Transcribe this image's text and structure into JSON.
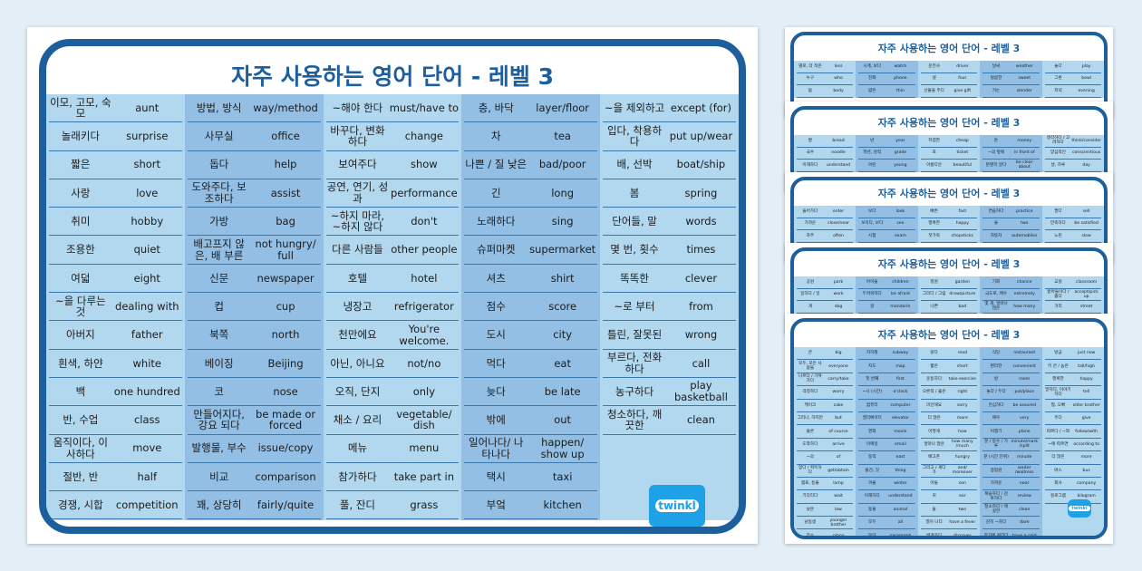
{
  "colors": {
    "frame": "#1d5e9c",
    "cell_light": "#b2d8ef",
    "cell_dark": "#93bfe5",
    "logo": "#1ea1e6",
    "background": "#e3eef7"
  },
  "main": {
    "title": "자주 사용하는 영어 단어 - 레벨 3",
    "logo": "twinkl",
    "columns": [
      {
        "rows": [
          {
            "ko": "이모, 고모, 숙모",
            "en": "aunt"
          },
          {
            "ko": "놀래키다",
            "en": "surprise"
          },
          {
            "ko": "짧은",
            "en": "short"
          },
          {
            "ko": "사랑",
            "en": "love"
          },
          {
            "ko": "취미",
            "en": "hobby"
          },
          {
            "ko": "조용한",
            "en": "quiet"
          },
          {
            "ko": "여덟",
            "en": "eight"
          },
          {
            "ko": "~을 다루는 것",
            "en": "dealing with"
          },
          {
            "ko": "아버지",
            "en": "father"
          },
          {
            "ko": "흰색, 하얀",
            "en": "white"
          },
          {
            "ko": "백",
            "en": "one hundred"
          },
          {
            "ko": "반, 수업",
            "en": "class"
          },
          {
            "ko": "움직이다, 이사하다",
            "en": "move"
          },
          {
            "ko": "절반, 반",
            "en": "half"
          },
          {
            "ko": "경쟁, 시합",
            "en": "competition"
          }
        ]
      },
      {
        "rows": [
          {
            "ko": "방법, 방식",
            "en": "way/method"
          },
          {
            "ko": "사무실",
            "en": "office"
          },
          {
            "ko": "돕다",
            "en": "help"
          },
          {
            "ko": "도와주다, 보조하다",
            "en": "assist"
          },
          {
            "ko": "가방",
            "en": "bag"
          },
          {
            "ko": "배고프지 않은, 배 부른",
            "en": "not hungry/ full"
          },
          {
            "ko": "신문",
            "en": "newspaper"
          },
          {
            "ko": "컵",
            "en": "cup"
          },
          {
            "ko": "북쪽",
            "en": "north"
          },
          {
            "ko": "베이징",
            "en": "Beijing"
          },
          {
            "ko": "코",
            "en": "nose"
          },
          {
            "ko": "만들어지다, 강요 되다",
            "en": "be made or forced"
          },
          {
            "ko": "발행물, 부수",
            "en": "issue/copy"
          },
          {
            "ko": "비교",
            "en": "comparison"
          },
          {
            "ko": "꽤, 상당히",
            "en": "fairly/quite"
          }
        ]
      },
      {
        "rows": [
          {
            "ko": "~해야 한다",
            "en": "must/have to"
          },
          {
            "ko": "바꾸다, 변화하다",
            "en": "change"
          },
          {
            "ko": "보여주다",
            "en": "show"
          },
          {
            "ko": "공연, 연기, 성과",
            "en": "performance"
          },
          {
            "ko": "~하지 마라, ~하지 않다",
            "en": "don't"
          },
          {
            "ko": "다른 사람들",
            "en": "other people"
          },
          {
            "ko": "호텔",
            "en": "hotel"
          },
          {
            "ko": "냉장고",
            "en": "refrigerator"
          },
          {
            "ko": "천만에요",
            "en": "You're welcome."
          },
          {
            "ko": "아닌, 아니요",
            "en": "not/no"
          },
          {
            "ko": "오직, 단지",
            "en": "only"
          },
          {
            "ko": "채소 / 요리",
            "en": "vegetable/ dish"
          },
          {
            "ko": "메뉴",
            "en": "menu"
          },
          {
            "ko": "참가하다",
            "en": "take part in"
          },
          {
            "ko": "풀, 잔디",
            "en": "grass"
          }
        ]
      },
      {
        "rows": [
          {
            "ko": "층, 바닥",
            "en": "layer/floor"
          },
          {
            "ko": "차",
            "en": "tea"
          },
          {
            "ko": "나쁜 / 질 낮은",
            "en": "bad/poor"
          },
          {
            "ko": "긴",
            "en": "long"
          },
          {
            "ko": "노래하다",
            "en": "sing"
          },
          {
            "ko": "슈퍼마켓",
            "en": "supermarket"
          },
          {
            "ko": "셔츠",
            "en": "shirt"
          },
          {
            "ko": "점수",
            "en": "score"
          },
          {
            "ko": "도시",
            "en": "city"
          },
          {
            "ko": "먹다",
            "en": "eat"
          },
          {
            "ko": "늦다",
            "en": "be late"
          },
          {
            "ko": "밖에",
            "en": "out"
          },
          {
            "ko": "일어나다/ 나타나다",
            "en": "happen/ show up"
          },
          {
            "ko": "택시",
            "en": "taxi"
          },
          {
            "ko": "부엌",
            "en": "kitchen"
          }
        ]
      },
      {
        "rows": [
          {
            "ko": "~을 제외하고",
            "en": "except (for)"
          },
          {
            "ko": "입다, 착용하다",
            "en": "put up/wear"
          },
          {
            "ko": "배, 선박",
            "en": "boat/ship"
          },
          {
            "ko": "봄",
            "en": "spring"
          },
          {
            "ko": "단어들, 말",
            "en": "words"
          },
          {
            "ko": "몇 번, 횟수",
            "en": "times"
          },
          {
            "ko": "똑똑한",
            "en": "clever"
          },
          {
            "ko": "~로 부터",
            "en": "from"
          },
          {
            "ko": "틀린, 잘못된",
            "en": "wrong"
          },
          {
            "ko": "부르다, 전화하다",
            "en": "call"
          },
          {
            "ko": "농구하다",
            "en": "play basketball"
          },
          {
            "ko": "청소하다, 깨끗한",
            "en": "clean"
          }
        ]
      }
    ]
  },
  "previews": [
    {
      "title": "자주 사용하는 영어 단어 - 레벨 3",
      "columns": [
        {
          "rows": [
            {
              "ko": "별로, 더 적은",
              "en": "less"
            },
            {
              "ko": "누구",
              "en": "who"
            },
            {
              "ko": "몸",
              "en": "body"
            }
          ]
        },
        {
          "rows": [
            {
              "ko": "시계, 보다",
              "en": "watch"
            },
            {
              "ko": "전화",
              "en": "phone"
            },
            {
              "ko": "얇은",
              "en": "thin"
            }
          ]
        },
        {
          "rows": [
            {
              "ko": "운전사",
              "en": "driver"
            },
            {
              "ko": "넷",
              "en": "four"
            },
            {
              "ko": "선물을 주다",
              "en": "give gift"
            }
          ]
        },
        {
          "rows": [
            {
              "ko": "날씨",
              "en": "weather"
            },
            {
              "ko": "달콤한",
              "en": "sweet"
            },
            {
              "ko": "가는",
              "en": "slender"
            }
          ]
        },
        {
          "rows": [
            {
              "ko": "놀다",
              "en": "play"
            },
            {
              "ko": "그릇",
              "en": "bowl"
            },
            {
              "ko": "저녁",
              "en": "evening"
            }
          ]
        }
      ]
    },
    {
      "title": "자주 사용하는 영어 단어 - 레벨 3",
      "columns": [
        {
          "rows": [
            {
              "ko": "빵",
              "en": "bread"
            },
            {
              "ko": "국수",
              "en": "noodle"
            },
            {
              "ko": "이해하다",
              "en": "understand"
            }
          ]
        },
        {
          "rows": [
            {
              "ko": "년",
              "en": "year"
            },
            {
              "ko": "학년, 성적",
              "en": "grade"
            },
            {
              "ko": "어린",
              "en": "young"
            }
          ]
        },
        {
          "rows": [
            {
              "ko": "저렴한",
              "en": "cheap"
            },
            {
              "ko": "표",
              "en": "ticket"
            },
            {
              "ko": "아름다운",
              "en": "beautiful"
            }
          ]
        },
        {
          "rows": [
            {
              "ko": "돈",
              "en": "money"
            },
            {
              "ko": "~의 앞에",
              "en": "in front of"
            },
            {
              "ko": "분명히 알다",
              "en": "be clear about"
            }
          ]
        },
        {
          "rows": [
            {
              "ko": "생각하다 / 고려하다",
              "en": "think/consider"
            },
            {
              "ko": "양심적인",
              "en": "conscientious"
            },
            {
              "ko": "날, 하루",
              "en": "day"
            }
          ]
        }
      ]
    },
    {
      "title": "자주 사용하는 영어 단어 - 레벨 3",
      "columns": [
        {
          "rows": [
            {
              "ko": "들어가다",
              "en": "enter"
            },
            {
              "ko": "가까운",
              "en": "close/near"
            },
            {
              "ko": "자주",
              "en": "often"
            }
          ]
        },
        {
          "rows": [
            {
              "ko": "보다",
              "en": "look"
            },
            {
              "ko": "보이다, 보다",
              "en": "see"
            },
            {
              "ko": "시험",
              "en": "exam"
            }
          ]
        },
        {
          "rows": [
            {
              "ko": "빠른",
              "en": "fast"
            },
            {
              "ko": "행복한",
              "en": "happy"
            },
            {
              "ko": "젓가락",
              "en": "chopsticks"
            }
          ]
        },
        {
          "rows": [
            {
              "ko": "연습하다",
              "en": "practice"
            },
            {
              "ko": "둘",
              "en": "two"
            },
            {
              "ko": "자동차",
              "en": "automobiles"
            }
          ]
        },
        {
          "rows": [
            {
              "ko": "팔다",
              "en": "sell"
            },
            {
              "ko": "만족하다",
              "en": "be satisfied"
            },
            {
              "ko": "느린",
              "en": "slow"
            }
          ]
        }
      ]
    },
    {
      "title": "자주 사용하는 영어 단어 - 레벨 3",
      "columns": [
        {
          "rows": [
            {
              "ko": "공원",
              "en": "park"
            },
            {
              "ko": "일하다 / 일",
              "en": "work"
            },
            {
              "ko": "개",
              "en": "dog"
            }
          ]
        },
        {
          "rows": [
            {
              "ko": "아이들",
              "en": "children"
            },
            {
              "ko": "두려워하다",
              "en": "be afraid"
            },
            {
              "ko": "귤",
              "en": "mandarin"
            }
          ]
        },
        {
          "rows": [
            {
              "ko": "정원",
              "en": "garden"
            },
            {
              "ko": "그리다 / 그림",
              "en": "draw/picture"
            },
            {
              "ko": "나쁜",
              "en": "bad"
            }
          ]
        },
        {
          "rows": [
            {
              "ko": "기회",
              "en": "chance"
            },
            {
              "ko": "극도로, 매우",
              "en": "extremely"
            },
            {
              "ko": "몇 개, 얼마나 많은",
              "en": "how many"
            }
          ]
        },
        {
          "rows": [
            {
              "ko": "교실",
              "en": "classroom"
            },
            {
              "ko": "받아들이다 / 줍다",
              "en": "accept/pick up"
            },
            {
              "ko": "거리",
              "en": "street"
            }
          ]
        }
      ]
    },
    {
      "title": "자주 사용하는 영어 단어 - 레벨 3",
      "logo": "twinkl",
      "columns": [
        {
          "rows": [
            {
              "ko": "큰",
              "en": "big"
            },
            {
              "ko": "모두, 모든 사람들",
              "en": "everyone"
            },
            {
              "ko": "나르다 / 가져가다",
              "en": "carry/take"
            },
            {
              "ko": "걱정하다",
              "en": "worry"
            },
            {
              "ko": "케이크",
              "en": "cake"
            },
            {
              "ko": "그러나, 하지만",
              "en": "but"
            },
            {
              "ko": "물론",
              "en": "of course"
            },
            {
              "ko": "도착하다",
              "en": "arrive"
            },
            {
              "ko": "~의",
              "en": "of"
            },
            {
              "ko": "얻다 / 획득하다",
              "en": "get/obtain"
            },
            {
              "ko": "램프, 등불",
              "en": "lamp"
            },
            {
              "ko": "기다리다",
              "en": "wait"
            },
            {
              "ko": "낮은",
              "en": "low"
            },
            {
              "ko": "남동생",
              "en": "younger brother"
            },
            {
              "ko": "장소",
              "en": "place"
            }
          ]
        },
        {
          "rows": [
            {
              "ko": "지하철",
              "en": "subway"
            },
            {
              "ko": "지도",
              "en": "map"
            },
            {
              "ko": "첫 번째",
              "en": "first"
            },
            {
              "ko": "~시 (시간)",
              "en": "o'clock"
            },
            {
              "ko": "컴퓨터",
              "en": "computer"
            },
            {
              "ko": "엘리베이터",
              "en": "elevator"
            },
            {
              "ko": "영화",
              "en": "movie"
            },
            {
              "ko": "이메일",
              "en": "email"
            },
            {
              "ko": "동쪽",
              "en": "east"
            },
            {
              "ko": "물건, 것",
              "en": "thing"
            },
            {
              "ko": "겨울",
              "en": "winter"
            },
            {
              "ko": "이해하다",
              "en": "understand"
            },
            {
              "ko": "동물",
              "en": "animal"
            },
            {
              "ko": "모두",
              "en": "all"
            },
            {
              "ko": "문단",
              "en": "paragraph"
            }
          ]
        },
        {
          "rows": [
            {
              "ko": "읽다",
              "en": "read"
            },
            {
              "ko": "짧은",
              "en": "short"
            },
            {
              "ko": "운동하다",
              "en": "take exercise"
            },
            {
              "ko": "오른쪽 / 옳은",
              "en": "right"
            },
            {
              "ko": "미안해요",
              "en": "sorry"
            },
            {
              "ko": "더 많은",
              "en": "more"
            },
            {
              "ko": "어떻게",
              "en": "how"
            },
            {
              "ko": "얼마나 많은",
              "en": "how many /much"
            },
            {
              "ko": "배고픈",
              "en": "hungry"
            },
            {
              "ko": "그리고 / 게다가",
              "en": "and/ moreover"
            },
            {
              "ko": "아들",
              "en": "son"
            },
            {
              "ko": "귀",
              "en": "ear"
            },
            {
              "ko": "둘",
              "en": "two"
            },
            {
              "ko": "열이 나다",
              "en": "have a fever"
            },
            {
              "ko": "발견하다",
              "en": "discover"
            }
          ]
        },
        {
          "rows": [
            {
              "ko": "식당",
              "en": "restaurant"
            },
            {
              "ko": "편리한",
              "en": "convenient"
            },
            {
              "ko": "방",
              "en": "room"
            },
            {
              "ko": "놓다 / 두다",
              "en": "put/place"
            },
            {
              "ko": "안심하다",
              "en": "be assured"
            },
            {
              "ko": "매우",
              "en": "very"
            },
            {
              "ko": "비행기",
              "en": "plane"
            },
            {
              "ko": "분 / 등수 / 가루",
              "en": "minute/mark /split"
            },
            {
              "ko": "분 (시간 단위)",
              "en": "minute"
            },
            {
              "ko": "종업원",
              "en": "waiter /waitress"
            },
            {
              "ko": "가까운",
              "en": "near"
            },
            {
              "ko": "복습하다 / 검토하다",
              "en": "review"
            },
            {
              "ko": "청소하다 / 깨끗한",
              "en": "clean"
            },
            {
              "ko": "감히 ~하다",
              "en": "dare"
            },
            {
              "ko": "감기에 걸리다",
              "en": "have a cold"
            }
          ]
        },
        {
          "rows": [
            {
              "ko": "방금",
              "en": "just now"
            },
            {
              "ko": "키 큰 / 높은",
              "en": "tall/high"
            },
            {
              "ko": "행복한",
              "en": "happy"
            },
            {
              "ko": "말하다, 이야기하다",
              "en": "tell"
            },
            {
              "ko": "형, 오빠",
              "en": "older brother"
            },
            {
              "ko": "주다",
              "en": "give"
            },
            {
              "ko": "따르다 / ~와",
              "en": "follow/with"
            },
            {
              "ko": "~에 따르면",
              "en": "according to"
            },
            {
              "ko": "더 많은",
              "en": "more"
            },
            {
              "ko": "버스",
              "en": "bus"
            },
            {
              "ko": "회사",
              "en": "company"
            },
            {
              "ko": "킬로그램",
              "en": "kilogram"
            }
          ]
        }
      ]
    }
  ]
}
